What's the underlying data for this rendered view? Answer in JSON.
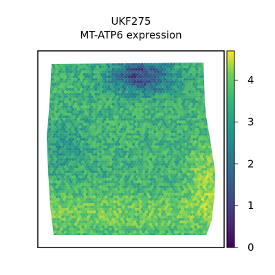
{
  "title_line1": "UKF275",
  "title_line2": "MT-ATP6 expression",
  "colorbar": {
    "min": 0,
    "max": 4.7,
    "ticks": [
      0,
      1,
      2,
      3,
      4
    ],
    "tick_labels": [
      "0",
      "1",
      "2",
      "3",
      "4"
    ],
    "colormap": "viridis",
    "colors": [
      "#440154",
      "#3b528b",
      "#21918c",
      "#5ec962",
      "#fde725"
    ]
  },
  "tissue": {
    "description_colors": {
      "background": "#ffffff",
      "frame": "#000000"
    }
  }
}
